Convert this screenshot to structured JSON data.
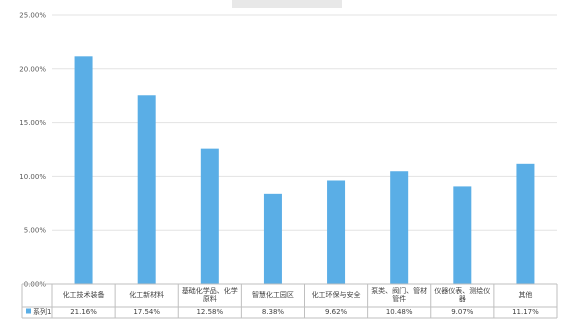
{
  "chart_data": {
    "type": "bar",
    "title": "",
    "xlabel": "",
    "ylabel": "",
    "ylim": [
      0,
      25
    ],
    "y_ticks": [
      "0.00%",
      "5.00%",
      "10.00%",
      "15.00%",
      "20.00%",
      "25.00%"
    ],
    "grid": true,
    "legend": "data-table-left",
    "colors": {
      "bar": "#5aaee6",
      "grid": "#e3e3e3",
      "axis": "#bfbfbf"
    },
    "categories": [
      [
        "化工技术装备"
      ],
      [
        "化工新材料"
      ],
      [
        "基础化学品、化学",
        "原料"
      ],
      [
        "智慧化工园区"
      ],
      [
        "化工环保与安全"
      ],
      [
        "泵类、阀门、管材",
        "管件"
      ],
      [
        "仪器仪表、测绘仪",
        "器"
      ],
      [
        "其他"
      ]
    ],
    "series": [
      {
        "name": "系列1",
        "values": [
          21.16,
          17.54,
          12.58,
          8.38,
          9.62,
          10.48,
          9.07,
          11.17
        ],
        "value_labels": [
          "21.16%",
          "17.54%",
          "12.58%",
          "8.38%",
          "9.62%",
          "10.48%",
          "9.07%",
          "11.17%"
        ]
      }
    ]
  }
}
